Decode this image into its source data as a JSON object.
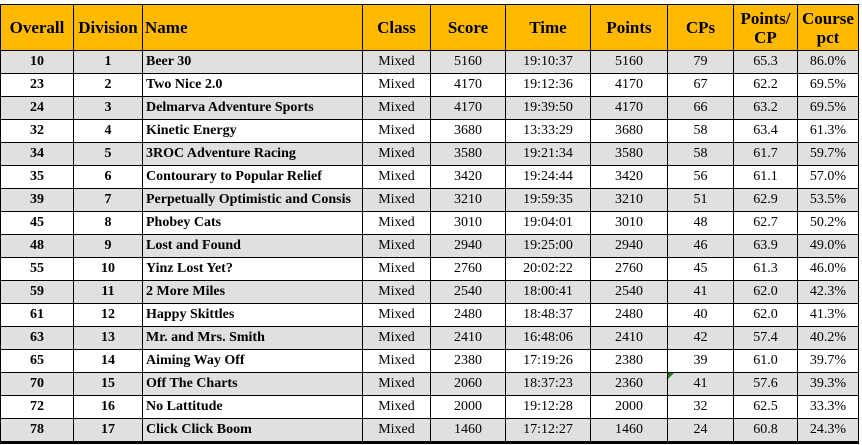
{
  "headers": {
    "overall": "Overall",
    "division": "Division",
    "name": "Name",
    "class": "Class",
    "score": "Score",
    "time": "Time",
    "points": "Points",
    "cps": "CPs",
    "points_per_cp": "Points/ CP",
    "course_pct": "Course pct"
  },
  "rows": [
    {
      "overall": "10",
      "division": "1",
      "name": "Beer 30",
      "class": "Mixed",
      "score": "5160",
      "time": "19:10:37",
      "points": "5160",
      "cps": "79",
      "points_per_cp": "65.3",
      "course_pct": "86.0%"
    },
    {
      "overall": "23",
      "division": "2",
      "name": "Two Nice 2.0",
      "class": "Mixed",
      "score": "4170",
      "time": "19:12:36",
      "points": "4170",
      "cps": "67",
      "points_per_cp": "62.2",
      "course_pct": "69.5%"
    },
    {
      "overall": "24",
      "division": "3",
      "name": "Delmarva Adventure Sports",
      "class": "Mixed",
      "score": "4170",
      "time": "19:39:50",
      "points": "4170",
      "cps": "66",
      "points_per_cp": "63.2",
      "course_pct": "69.5%"
    },
    {
      "overall": "32",
      "division": "4",
      "name": "Kinetic Energy",
      "class": "Mixed",
      "score": "3680",
      "time": "13:33:29",
      "points": "3680",
      "cps": "58",
      "points_per_cp": "63.4",
      "course_pct": "61.3%"
    },
    {
      "overall": "34",
      "division": "5",
      "name": "3ROC Adventure Racing",
      "class": "Mixed",
      "score": "3580",
      "time": "19:21:34",
      "points": "3580",
      "cps": "58",
      "points_per_cp": "61.7",
      "course_pct": "59.7%"
    },
    {
      "overall": "35",
      "division": "6",
      "name": "Contourary to Popular Relief",
      "class": "Mixed",
      "score": "3420",
      "time": "19:24:44",
      "points": "3420",
      "cps": "56",
      "points_per_cp": "61.1",
      "course_pct": "57.0%"
    },
    {
      "overall": "39",
      "division": "7",
      "name": "Perpetually Optimistic and Consis",
      "class": "Mixed",
      "score": "3210",
      "time": "19:59:35",
      "points": "3210",
      "cps": "51",
      "points_per_cp": "62.9",
      "course_pct": "53.5%"
    },
    {
      "overall": "45",
      "division": "8",
      "name": "Phobey Cats",
      "class": "Mixed",
      "score": "3010",
      "time": "19:04:01",
      "points": "3010",
      "cps": "48",
      "points_per_cp": "62.7",
      "course_pct": "50.2%"
    },
    {
      "overall": "48",
      "division": "9",
      "name": "Lost and Found",
      "class": "Mixed",
      "score": "2940",
      "time": "19:25:00",
      "points": "2940",
      "cps": "46",
      "points_per_cp": "63.9",
      "course_pct": "49.0%"
    },
    {
      "overall": "55",
      "division": "10",
      "name": "Yinz Lost Yet?",
      "class": "Mixed",
      "score": "2760",
      "time": "20:02:22",
      "points": "2760",
      "cps": "45",
      "points_per_cp": "61.3",
      "course_pct": "46.0%"
    },
    {
      "overall": "59",
      "division": "11",
      "name": "2 More Miles",
      "class": "Mixed",
      "score": "2540",
      "time": "18:00:41",
      "points": "2540",
      "cps": "41",
      "points_per_cp": "62.0",
      "course_pct": "42.3%"
    },
    {
      "overall": "61",
      "division": "12",
      "name": "Happy Skittles",
      "class": "Mixed",
      "score": "2480",
      "time": "18:48:37",
      "points": "2480",
      "cps": "40",
      "points_per_cp": "62.0",
      "course_pct": "41.3%"
    },
    {
      "overall": "63",
      "division": "13",
      "name": "Mr. and Mrs. Smith",
      "class": "Mixed",
      "score": "2410",
      "time": "16:48:06",
      "points": "2410",
      "cps": "42",
      "points_per_cp": "57.4",
      "course_pct": "40.2%"
    },
    {
      "overall": "65",
      "division": "14",
      "name": "Aiming Way Off",
      "class": "Mixed",
      "score": "2380",
      "time": "17:19:26",
      "points": "2380",
      "cps": "39",
      "points_per_cp": "61.0",
      "course_pct": "39.7%"
    },
    {
      "overall": "70",
      "division": "15",
      "name": "Off The Charts",
      "class": "Mixed",
      "score": "2060",
      "time": "18:37:23",
      "points": "2360",
      "cps": "41",
      "points_per_cp": "57.6",
      "course_pct": "39.3%"
    },
    {
      "overall": "72",
      "division": "16",
      "name": "No Lattitude",
      "class": "Mixed",
      "score": "2000",
      "time": "19:12:28",
      "points": "2000",
      "cps": "32",
      "points_per_cp": "62.5",
      "course_pct": "33.3%"
    },
    {
      "overall": "78",
      "division": "17",
      "name": "Click Click Boom",
      "class": "Mixed",
      "score": "1460",
      "time": "17:12:27",
      "points": "1460",
      "cps": "24",
      "points_per_cp": "60.8",
      "course_pct": "24.3%"
    }
  ],
  "colors": {
    "header_bg": "#FFBA00",
    "alt_row_bg": "#E0E0E0",
    "comment_marker": "#1E7E1E"
  }
}
